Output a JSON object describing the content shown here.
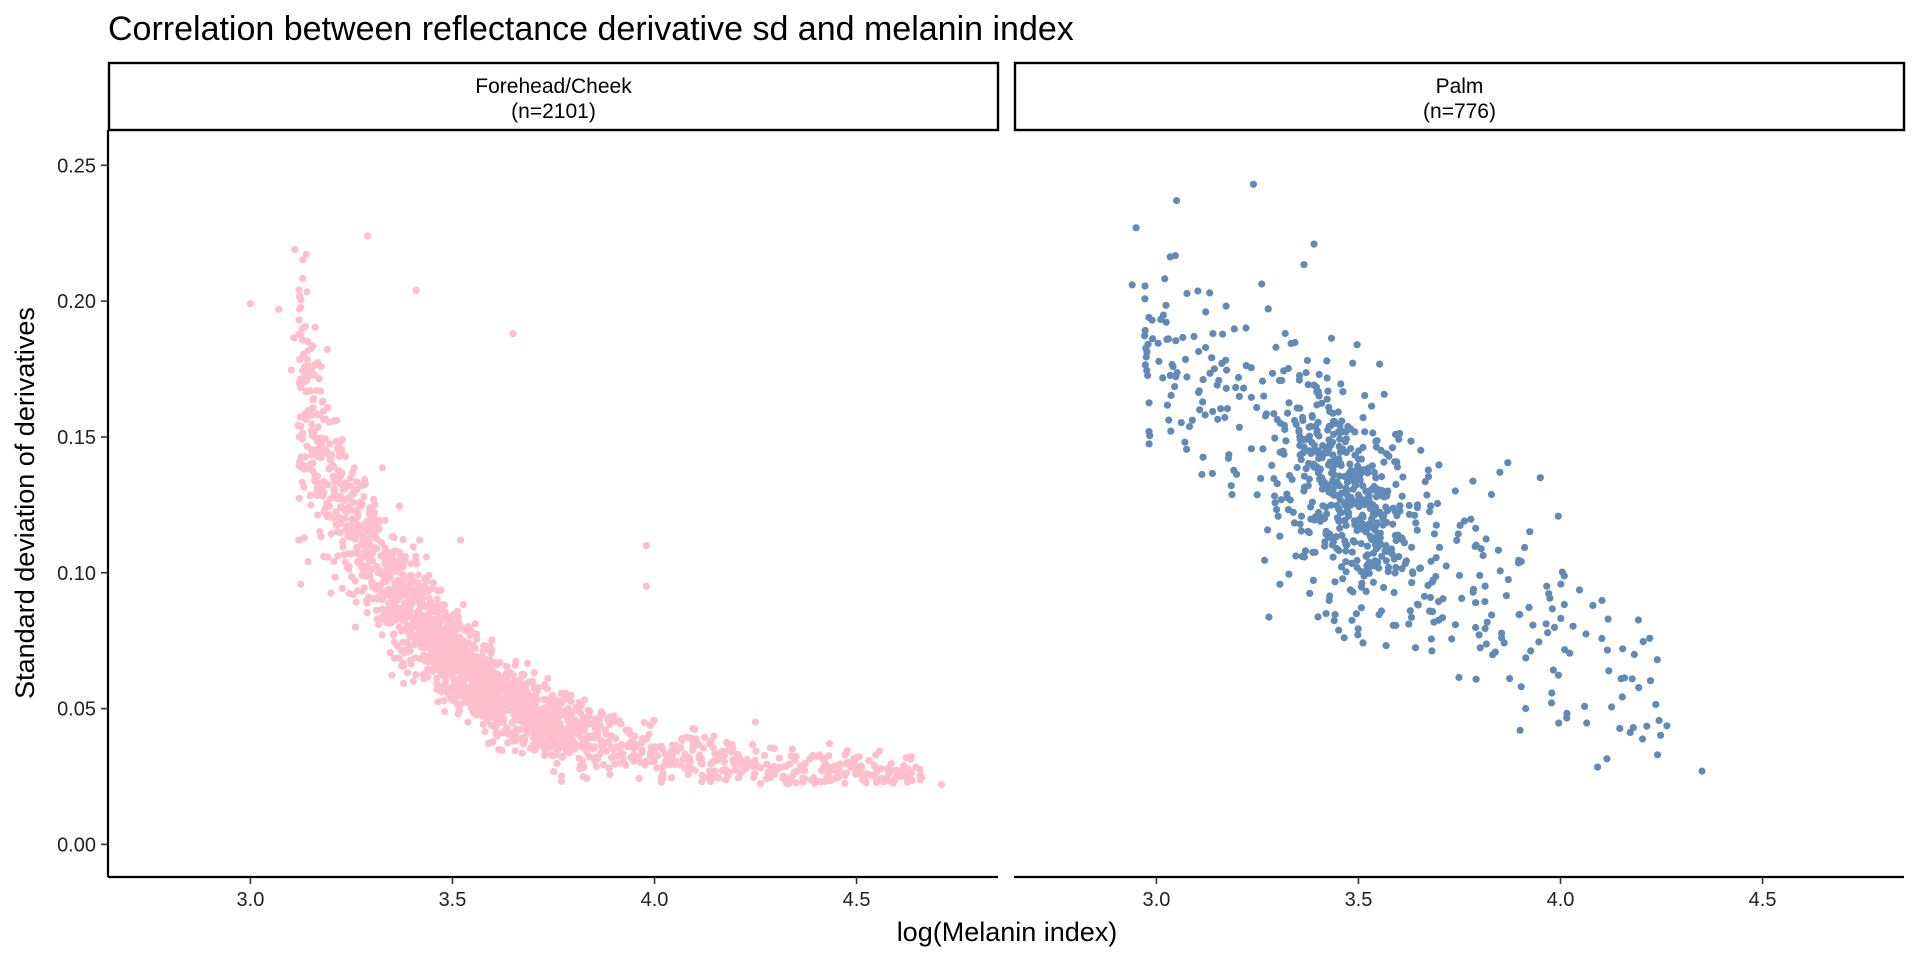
{
  "chart_data": {
    "type": "scatter",
    "title": "Correlation between reflectance derivative sd and melanin index",
    "xlabel": "log(Melanin index)",
    "ylabel": "Standard deviation of derivatives",
    "xlim": [
      2.65,
      4.85
    ],
    "ylim": [
      -0.012,
      0.263
    ],
    "x_ticks": [
      3.0,
      3.5,
      4.0,
      4.5
    ],
    "y_ticks": [
      0.0,
      0.05,
      0.1,
      0.15,
      0.2,
      0.25
    ],
    "x_tick_labels": [
      "3.0",
      "3.5",
      "4.0",
      "4.5"
    ],
    "y_tick_labels": [
      "0.00",
      "0.05",
      "0.10",
      "0.15",
      "0.20",
      "0.25"
    ],
    "grid": false,
    "facets": [
      {
        "name": "Forehead/Cheek",
        "count_label": "(n=2101)",
        "n": 2101,
        "color": "#FFB3C6",
        "x_range": [
          3.0,
          4.71
        ],
        "y_range": [
          0.022,
          0.224
        ],
        "trend": "negative, curved",
        "sample_points": [
          {
            "x": 3.0,
            "y": 0.199
          },
          {
            "x": 3.07,
            "y": 0.197
          },
          {
            "x": 3.11,
            "y": 0.219
          },
          {
            "x": 3.29,
            "y": 0.224
          },
          {
            "x": 3.41,
            "y": 0.204
          },
          {
            "x": 3.65,
            "y": 0.188
          },
          {
            "x": 3.12,
            "y": 0.112
          },
          {
            "x": 3.26,
            "y": 0.08
          },
          {
            "x": 3.52,
            "y": 0.112
          },
          {
            "x": 3.98,
            "y": 0.11
          },
          {
            "x": 3.98,
            "y": 0.095
          },
          {
            "x": 4.02,
            "y": 0.024
          },
          {
            "x": 4.25,
            "y": 0.045
          },
          {
            "x": 4.5,
            "y": 0.032
          },
          {
            "x": 4.61,
            "y": 0.025
          },
          {
            "x": 4.71,
            "y": 0.022
          }
        ]
      },
      {
        "name": "Palm",
        "count_label": "(n=776)",
        "n": 776,
        "color": "#3A6EA5",
        "x_range": [
          2.94,
          4.35
        ],
        "y_range": [
          0.027,
          0.243
        ],
        "trend": "negative, linear",
        "sample_points": [
          {
            "x": 3.24,
            "y": 0.243
          },
          {
            "x": 2.95,
            "y": 0.227
          },
          {
            "x": 3.05,
            "y": 0.237
          },
          {
            "x": 3.39,
            "y": 0.221
          },
          {
            "x": 2.94,
            "y": 0.206
          },
          {
            "x": 3.75,
            "y": 0.099
          },
          {
            "x": 3.85,
            "y": 0.137
          },
          {
            "x": 3.95,
            "y": 0.135
          },
          {
            "x": 4.08,
            "y": 0.088
          },
          {
            "x": 3.9,
            "y": 0.042
          },
          {
            "x": 4.15,
            "y": 0.061
          },
          {
            "x": 4.18,
            "y": 0.043
          },
          {
            "x": 4.24,
            "y": 0.033
          },
          {
            "x": 4.35,
            "y": 0.027
          }
        ]
      }
    ]
  }
}
